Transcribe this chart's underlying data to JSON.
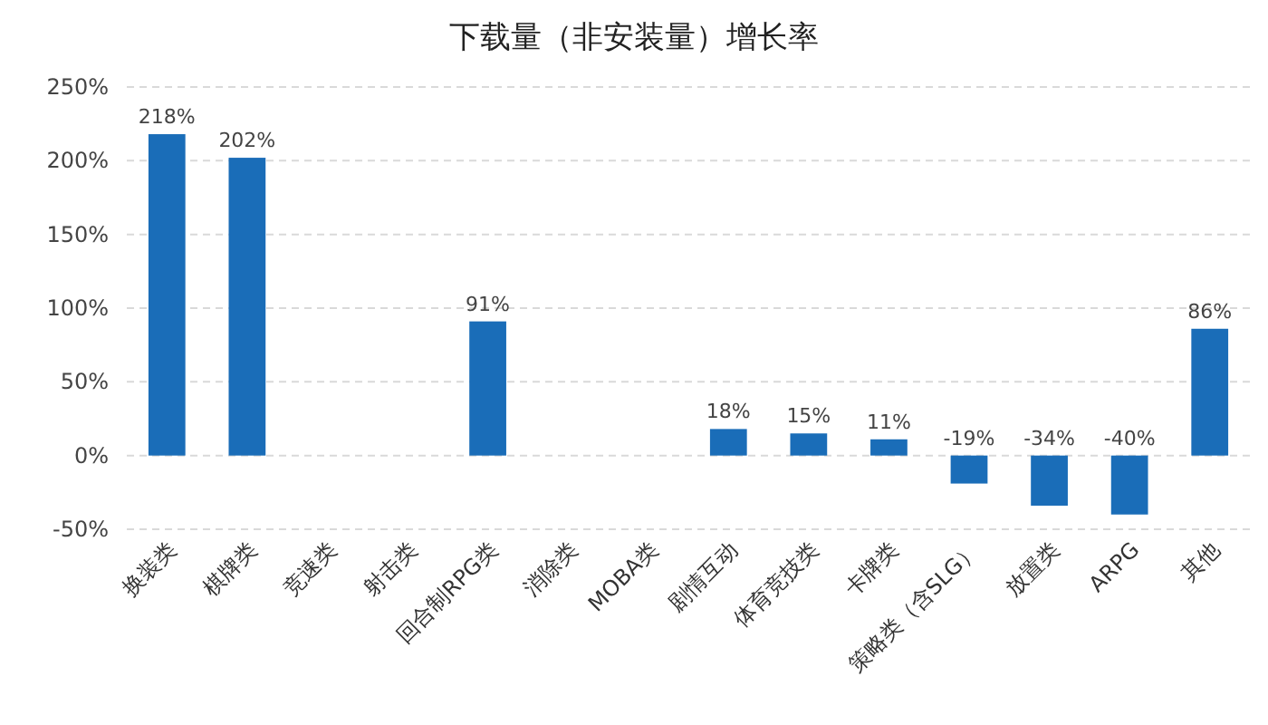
{
  "chart_data": {
    "type": "bar",
    "title": "下载量（非安装量）增长率",
    "categories": [
      "换装类",
      "棋牌类",
      "竞速类",
      "射击类",
      "回合制RPG类",
      "消除类",
      "MOBA类",
      "剧情互动",
      "体育竞技类",
      "卡牌类",
      "策略类（含SLG）",
      "放置类",
      "ARPG",
      "其他"
    ],
    "values": [
      218,
      202,
      null,
      null,
      91,
      null,
      null,
      18,
      15,
      11,
      -19,
      -34,
      -40,
      86
    ],
    "value_labels": [
      "218%",
      "202%",
      null,
      null,
      "91%",
      null,
      null,
      "18%",
      "15%",
      "11%",
      "-19%",
      "-34%",
      "-40%",
      "86%"
    ],
    "color": "#1a6db8",
    "ylim": [
      -50,
      250
    ],
    "yticks": [
      {
        "value": -50,
        "label": "-50%"
      },
      {
        "value": 0,
        "label": "0%"
      },
      {
        "value": 50,
        "label": "50%"
      },
      {
        "value": 100,
        "label": "100%"
      },
      {
        "value": 150,
        "label": "150%"
      },
      {
        "value": 200,
        "label": "200%"
      },
      {
        "value": 250,
        "label": "250%"
      }
    ],
    "grid": "y"
  }
}
